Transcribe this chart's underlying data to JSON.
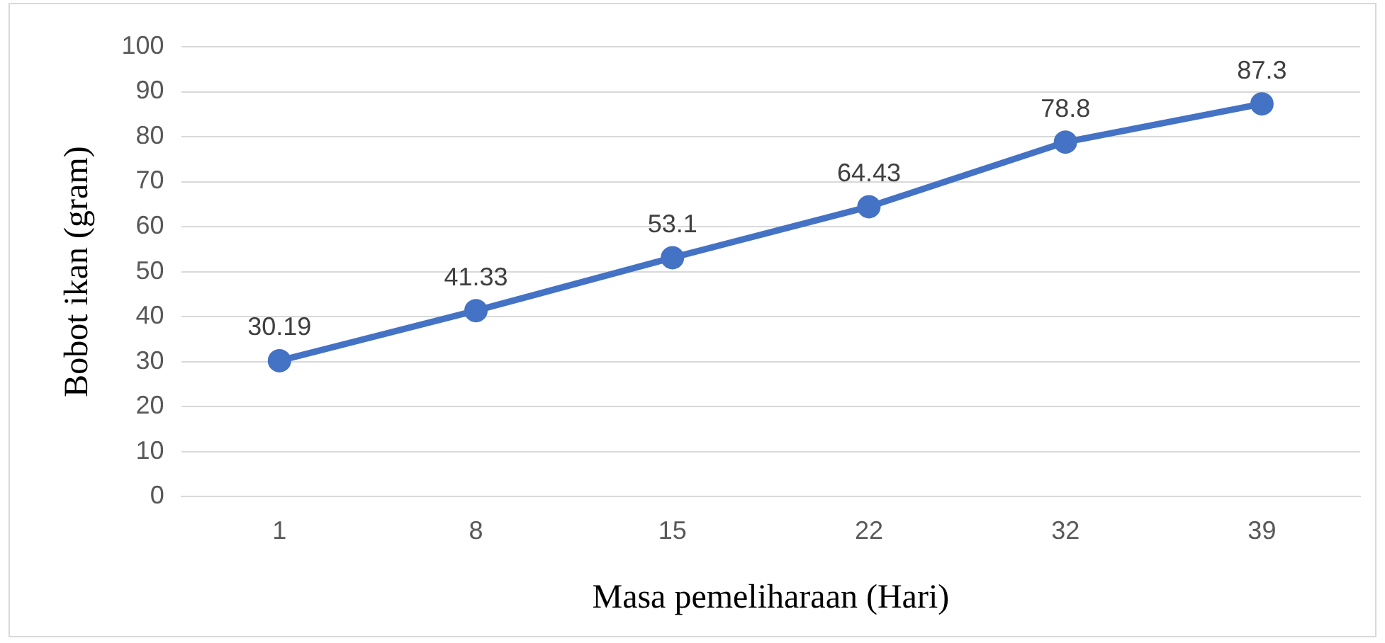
{
  "chart_data": {
    "type": "line",
    "xlabel": "Masa pemeliharaan (Hari)",
    "ylabel": "Bobot ikan (gram)",
    "categories": [
      "1",
      "8",
      "15",
      "22",
      "32",
      "39"
    ],
    "series": [
      {
        "color": "#4472c4",
        "values": [
          30.19,
          41.33,
          53.1,
          64.43,
          78.8,
          87.3
        ]
      }
    ],
    "ylim": [
      0,
      100
    ],
    "yticks": [
      0,
      10,
      20,
      30,
      40,
      50,
      60,
      70,
      80,
      90,
      100
    ],
    "grid": "y",
    "legend": false,
    "marker": "circle",
    "line_style": "solid",
    "data_labels": true
  }
}
